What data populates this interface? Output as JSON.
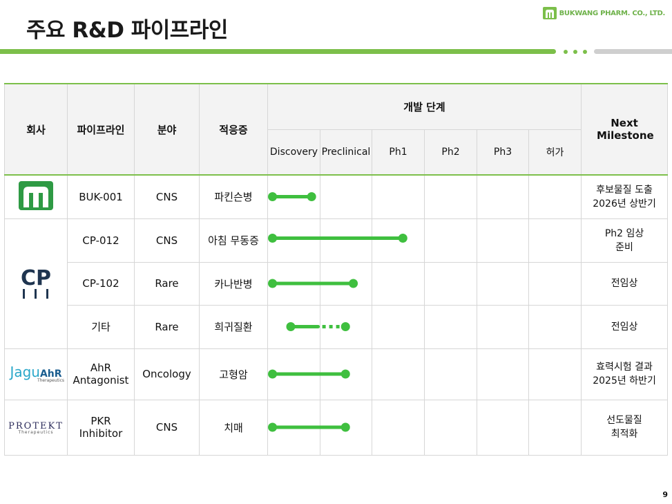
{
  "page": {
    "title": "주요 R&D 파이프라인",
    "brand": "BUKWANG PHARM. CO., LTD.",
    "page_number": "9"
  },
  "colors": {
    "accent_green": "#7cbf4a",
    "bar_green": "#3fbf3f",
    "rule_grey": "#cfcfcf"
  },
  "table": {
    "headers": {
      "company": "회사",
      "pipeline": "파이프라인",
      "field": "분야",
      "indication": "적응증",
      "stage_group": "개발 단계",
      "next": "Next Milestone"
    },
    "stages": [
      "Discovery",
      "Preclinical",
      "Ph1",
      "Ph2",
      "Ph3",
      "허가"
    ],
    "logos": {
      "cp": "CP",
      "jagu_1": "Jagu",
      "jagu_2": "AhR",
      "jagu_sub": "Therapeutics",
      "protekt": "PROTEKT",
      "protekt_sub": "Therapeutics"
    },
    "rows": [
      {
        "pipeline": "BUK-001",
        "field": "CNS",
        "indication": "파킨슨병",
        "next": [
          "후보물질 도출",
          "2026년 상반기"
        ]
      },
      {
        "pipeline": "CP-012",
        "field": "CNS",
        "indication": "아침 무동증",
        "next": [
          "Ph2 임상",
          "준비"
        ]
      },
      {
        "pipeline": "CP-102",
        "field": "Rare",
        "indication": "카나반병",
        "next": [
          "전임상",
          ""
        ]
      },
      {
        "pipeline": "기타",
        "field": "Rare",
        "indication": "희귀질환",
        "next": [
          "전임상",
          ""
        ]
      },
      {
        "pipeline": [
          "AhR",
          "Antagonist"
        ],
        "field": "Oncology",
        "indication": "고형암",
        "next": [
          "효력시험 결과",
          "2025년 하반기"
        ]
      },
      {
        "pipeline": [
          "PKR",
          "Inhibitor"
        ],
        "field": "CNS",
        "indication": "치매",
        "next": [
          "선도물질",
          "최적화"
        ]
      }
    ]
  },
  "chart_data": {
    "type": "timeline",
    "stages": [
      "Discovery",
      "Preclinical",
      "Ph1",
      "Ph2",
      "Ph3",
      "허가"
    ],
    "progress": [
      {
        "pipeline": "BUK-001",
        "start": 0.1,
        "end": 0.85,
        "dashed_segment": false
      },
      {
        "pipeline": "CP-012",
        "start": 0.1,
        "end": 2.6,
        "dashed_segment": false
      },
      {
        "pipeline": "CP-102",
        "start": 0.1,
        "end": 1.65,
        "dashed_segment": false
      },
      {
        "pipeline": "기타",
        "start": 0.45,
        "end": 1.5,
        "dashed_segment": true
      },
      {
        "pipeline": "AhR Antagonist",
        "start": 0.1,
        "end": 1.5,
        "dashed_segment": false
      },
      {
        "pipeline": "PKR Inhibitor",
        "start": 0.1,
        "end": 1.5,
        "dashed_segment": false
      }
    ]
  }
}
